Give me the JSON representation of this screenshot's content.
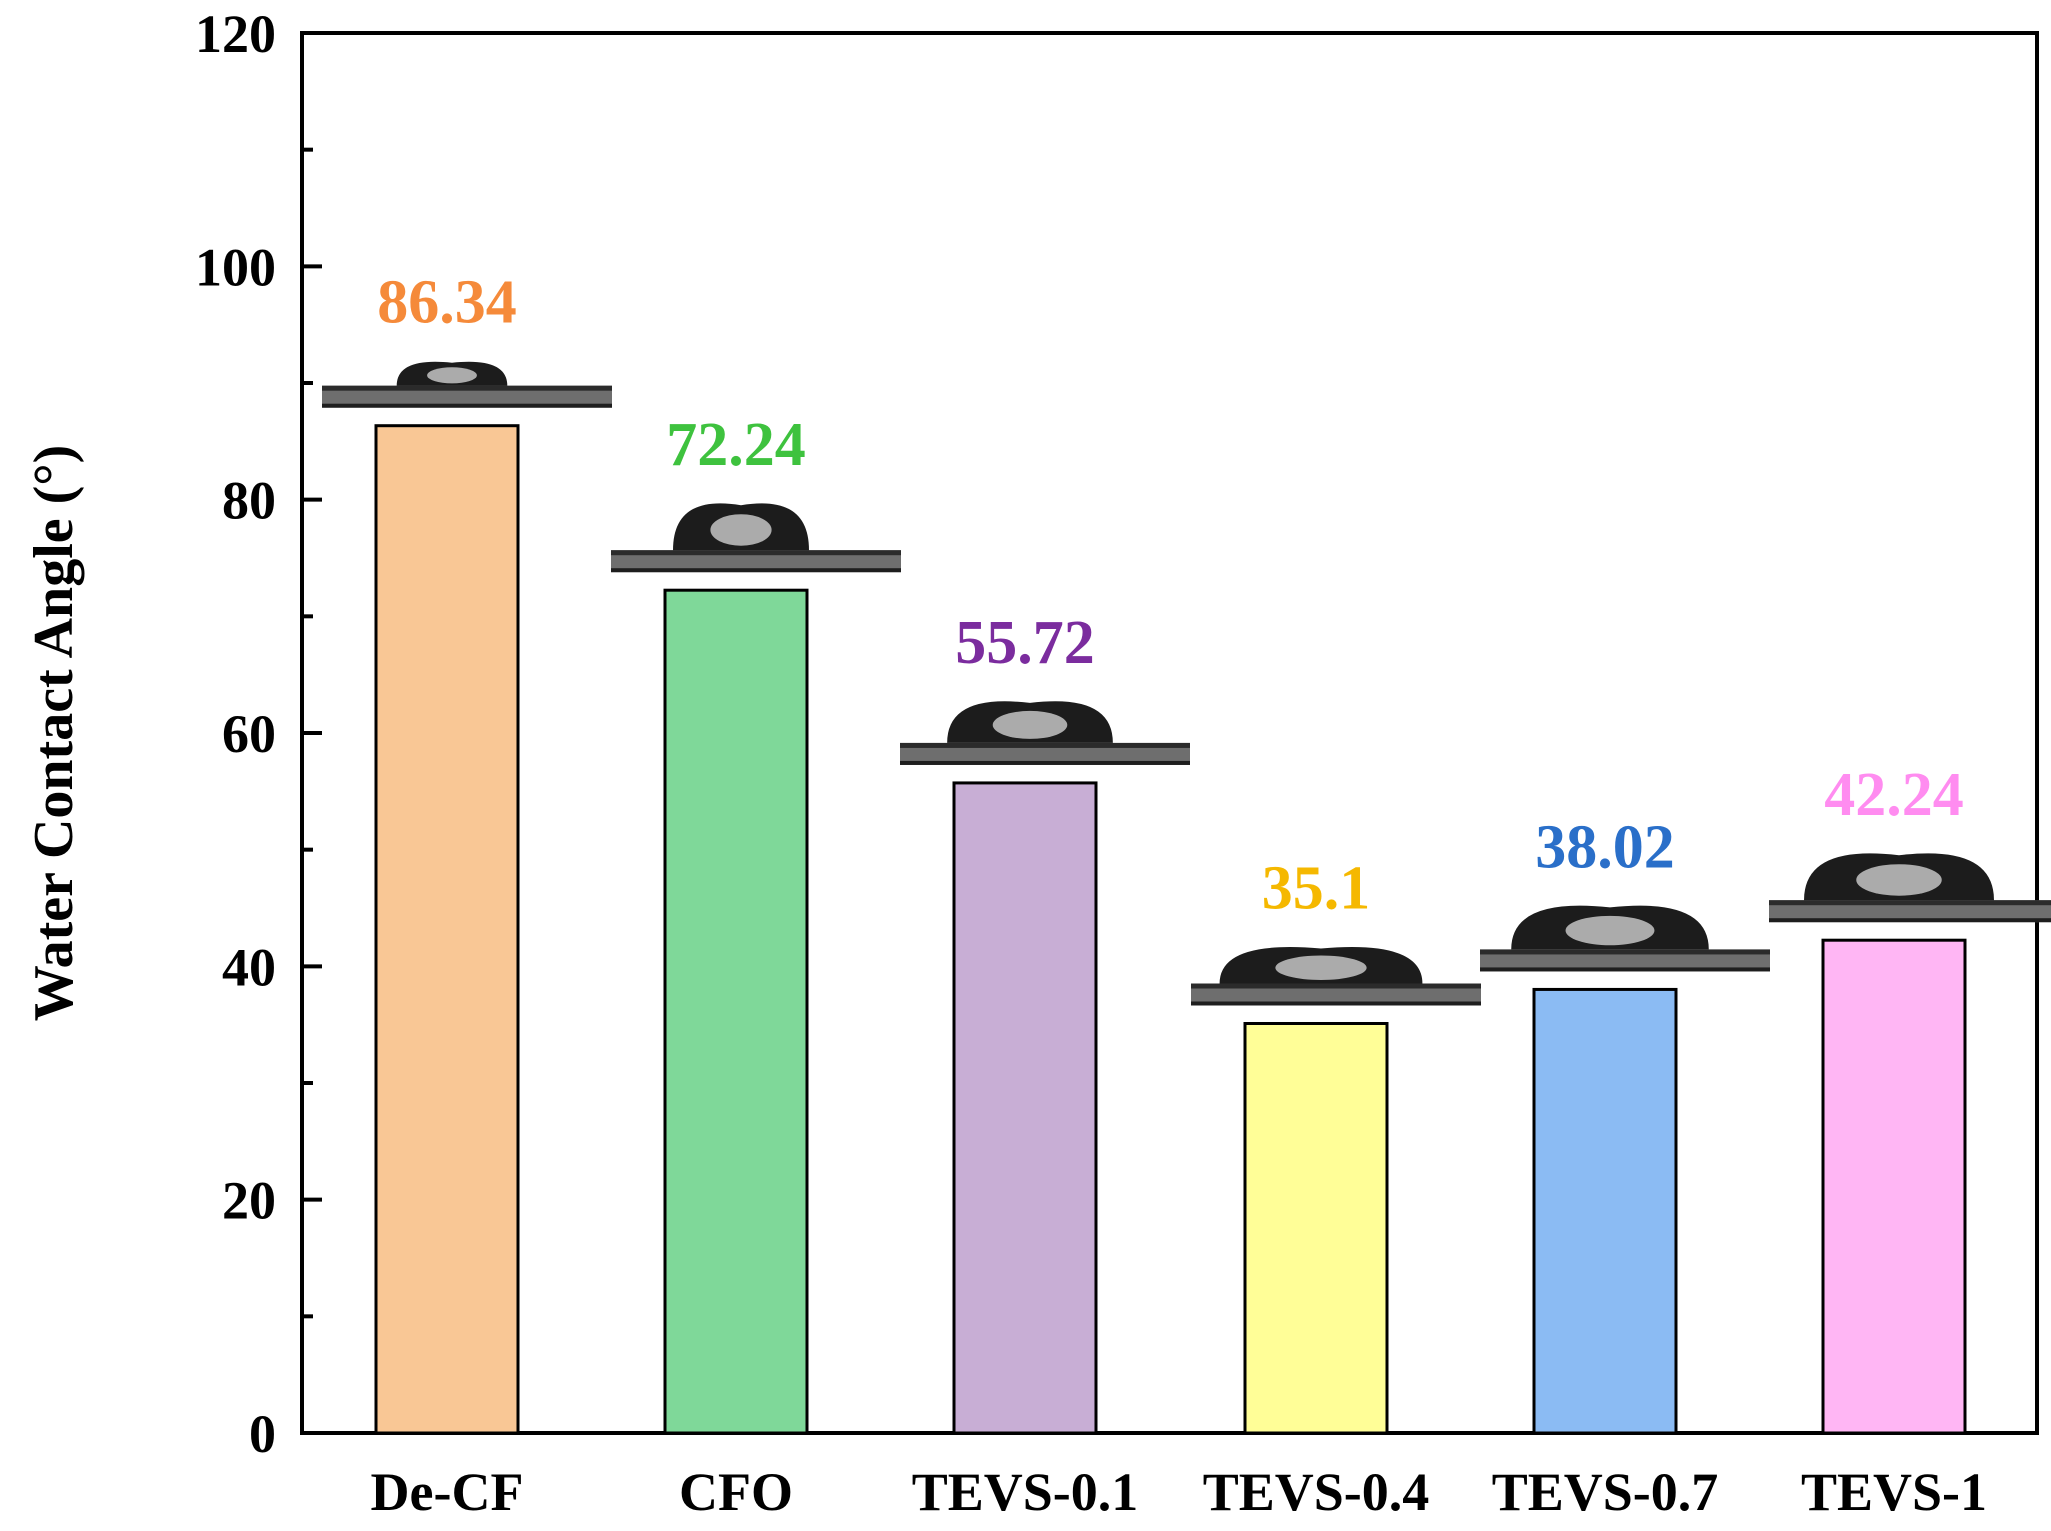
{
  "chart_data": {
    "type": "bar",
    "title": "",
    "xlabel": "",
    "ylabel": "Water Contact Angle (°)",
    "ylim": [
      0,
      120
    ],
    "y_ticks": [
      "0",
      "20",
      "40",
      "60",
      "80",
      "100",
      "120"
    ],
    "grid": false,
    "categories": [
      "De-CF",
      "CFO",
      "TEVS-0.1",
      "TEVS-0.4",
      "TEVS-0.7",
      "TEVS-1"
    ],
    "values": [
      86.34,
      72.24,
      55.72,
      35.1,
      38.02,
      42.24
    ],
    "data_labels": [
      "86.34",
      "72.24",
      "55.72",
      "35.1",
      "38.02",
      "42.24"
    ],
    "bar_colors": [
      "#F9C795",
      "#7FD899",
      "#C8AED5",
      "#FFFE97",
      "#8BBBF3",
      "#FFB6F4"
    ],
    "label_colors": [
      "#F58A3A",
      "#3EC23E",
      "#7B2C9E",
      "#F5B800",
      "#2A6FC9",
      "#FF8CF0"
    ],
    "droplet_images": [
      "droplet-photo",
      "droplet-photo",
      "droplet-photo",
      "droplet-photo",
      "droplet-photo",
      "droplet-photo"
    ]
  }
}
